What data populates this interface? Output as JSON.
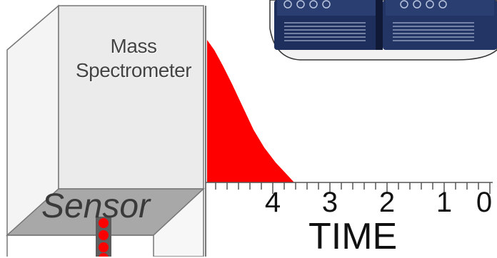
{
  "labels": {
    "mass_spectrometer_line1": "Mass",
    "mass_spectrometer_line2": "Spectrometer",
    "sensor": "Sensor",
    "time_axis": "TIME"
  },
  "time_tick_labels": [
    "4",
    "3",
    "2",
    "1",
    "0"
  ],
  "colors": {
    "peak": "#ff0000",
    "droplet": "#ff0000",
    "box_front": "#ebebeb",
    "box_side": "#dcdcdc",
    "sensor_top": "#a8a8a8",
    "instrument": "#1e2f5e"
  },
  "icons": [
    "mass-spectrometer-instrument-photo",
    "droplet-stream-icon"
  ]
}
